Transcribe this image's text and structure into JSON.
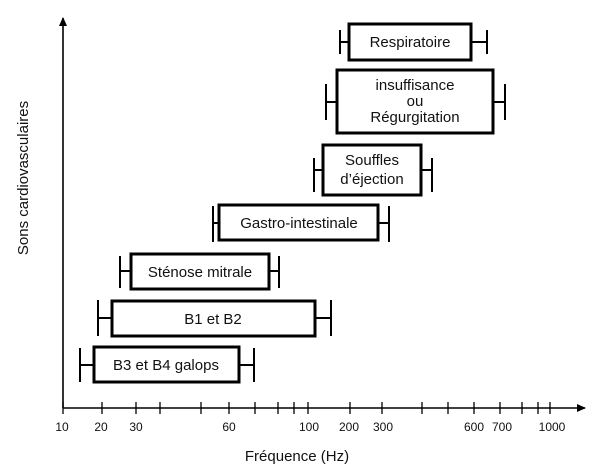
{
  "diagram": {
    "y_axis_title": "Sons cardiovasculaires",
    "x_axis_title": "Fréquence (Hz)",
    "x_tick_labels": [
      "10",
      "20",
      "30",
      "60",
      "100",
      "200",
      "300",
      "600",
      "700",
      "1000"
    ],
    "bands": [
      {
        "name": "Respiratoire",
        "lines": [
          "Respiratoire"
        ]
      },
      {
        "name": "insuffisance ou Régurgitation",
        "lines": [
          "insuffisance",
          "ou",
          "Régurgitation"
        ]
      },
      {
        "name": "Souffles d’éjection",
        "lines": [
          "Souffles",
          "d’éjection"
        ]
      },
      {
        "name": "Gastro-intestinale",
        "lines": [
          "Gastro-intestinale"
        ]
      },
      {
        "name": "Sténose mitrale",
        "lines": [
          "Sténose mitrale"
        ]
      },
      {
        "name": "B1 et B2",
        "lines": [
          "B1 et B2"
        ]
      },
      {
        "name": "B3 et B4 galops",
        "lines": [
          "B3 et B4 galops"
        ]
      }
    ]
  }
}
